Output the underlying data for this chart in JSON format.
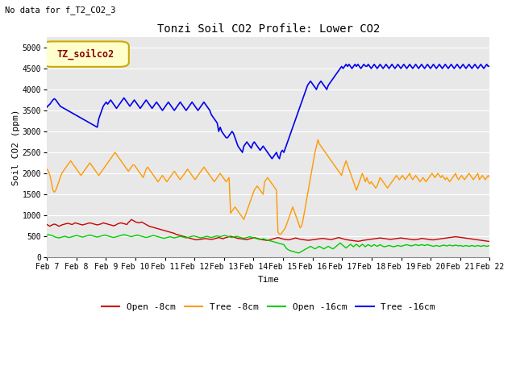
{
  "title": "Tonzi Soil CO2 Profile: Lower CO2",
  "subtitle": "No data for f_T2_CO2_3",
  "xlabel": "Time",
  "ylabel": "Soil CO2 (ppm)",
  "ylim": [
    0,
    5250
  ],
  "yticks": [
    0,
    500,
    1000,
    1500,
    2000,
    2500,
    3000,
    3500,
    4000,
    4500,
    5000
  ],
  "bg_color": "#e8e8e8",
  "legend_label": "TZ_soilco2",
  "legend_box_color": "#ffffcc",
  "legend_box_edge": "#ccaa00",
  "series_labels": [
    "Open -8cm",
    "Tree -8cm",
    "Open -16cm",
    "Tree -16cm"
  ],
  "series_colors": [
    "#cc0000",
    "#ff9900",
    "#00cc00",
    "#0000ee"
  ],
  "xticklabels": [
    "Feb 7",
    "Feb 8",
    "Feb 9",
    "Feb 10",
    "Feb 11",
    "Feb 12",
    "Feb 13",
    "Feb 14",
    "Feb 15",
    "Feb 16",
    "Feb 17",
    "Feb 18",
    "Feb 19",
    "Feb 20",
    "Feb 21",
    "Feb 22"
  ],
  "font_family": "monospace",
  "open8": [
    780,
    760,
    740,
    760,
    780,
    790,
    780,
    760,
    740,
    750,
    770,
    780,
    790,
    800,
    810,
    800,
    790,
    780,
    800,
    820,
    810,
    800,
    790,
    780,
    770,
    780,
    790,
    800,
    810,
    820,
    810,
    800,
    790,
    780,
    770,
    780,
    790,
    800,
    820,
    810,
    800,
    790,
    780,
    770,
    760,
    750,
    760,
    780,
    800,
    810,
    820,
    810,
    800,
    790,
    780,
    830,
    860,
    900,
    880,
    860,
    840,
    830,
    820,
    830,
    840,
    820,
    800,
    780,
    760,
    740,
    730,
    720,
    710,
    700,
    690,
    680,
    670,
    660,
    650,
    640,
    630,
    620,
    610,
    600,
    590,
    580,
    570,
    550,
    540,
    530,
    520,
    510,
    500,
    490,
    480,
    470,
    460,
    450,
    440,
    430,
    420,
    415,
    420,
    425,
    430,
    435,
    440,
    445,
    440,
    435,
    430,
    425,
    430,
    440,
    450,
    460,
    470,
    460,
    450,
    440,
    460,
    470,
    480,
    490,
    500,
    490,
    480,
    470,
    460,
    450,
    445,
    440,
    435,
    430,
    425,
    420,
    430,
    440,
    450,
    460,
    470,
    460,
    450,
    440,
    430,
    420,
    415,
    410,
    405,
    400,
    410,
    420,
    430,
    440,
    450,
    460,
    470,
    460,
    450,
    440,
    430,
    425,
    420,
    415,
    420,
    430,
    440,
    450,
    460,
    450,
    440,
    430,
    425,
    420,
    415,
    410,
    405,
    405,
    410,
    415,
    420,
    425,
    430,
    435,
    440,
    445,
    450,
    445,
    440,
    435,
    430,
    425,
    420,
    430,
    440,
    450,
    460,
    470,
    460,
    450,
    440,
    430,
    420,
    415,
    410,
    405,
    400,
    395,
    390,
    385,
    380,
    385,
    390,
    400,
    405,
    410,
    415,
    420,
    425,
    430,
    435,
    440,
    445,
    450,
    455,
    460,
    455,
    450,
    445,
    440,
    435,
    430,
    425,
    430,
    435,
    440,
    445,
    450,
    455,
    460,
    455,
    450,
    445,
    440,
    435,
    430,
    425,
    420,
    415,
    420,
    425,
    430,
    440,
    450,
    445,
    440,
    435,
    430,
    425,
    420,
    415,
    415,
    420,
    425,
    430,
    435,
    440,
    445,
    450,
    455,
    460,
    465,
    470,
    475,
    480,
    485,
    490,
    485,
    480,
    475,
    470,
    465,
    460,
    455,
    450,
    445,
    440,
    435,
    430,
    425,
    420,
    415,
    410,
    405,
    400,
    395,
    390,
    385,
    380,
    375,
    370,
    365,
    360,
    355,
    350,
    345,
    350,
    355,
    360,
    365,
    370,
    375,
    380,
    390,
    395,
    400,
    410,
    415,
    420,
    425,
    430,
    435,
    440,
    445,
    450,
    455,
    460,
    465,
    470,
    475,
    480,
    485,
    490,
    495,
    500,
    505,
    510,
    505,
    500,
    495
  ],
  "tree8": [
    2100,
    2050,
    1950,
    1800,
    1600,
    1550,
    1600,
    1700,
    1800,
    1900,
    2000,
    2050,
    2100,
    2150,
    2200,
    2250,
    2300,
    2250,
    2200,
    2150,
    2100,
    2050,
    2000,
    1950,
    2000,
    2050,
    2100,
    2150,
    2200,
    2250,
    2200,
    2150,
    2100,
    2050,
    2000,
    1950,
    2000,
    2050,
    2100,
    2150,
    2200,
    2250,
    2300,
    2350,
    2400,
    2450,
    2500,
    2450,
    2400,
    2350,
    2300,
    2250,
    2200,
    2150,
    2100,
    2050,
    2100,
    2150,
    2200,
    2200,
    2150,
    2100,
    2050,
    2000,
    1950,
    1900,
    2000,
    2100,
    2150,
    2100,
    2050,
    2000,
    1950,
    1900,
    1850,
    1800,
    1850,
    1900,
    1950,
    1900,
    1850,
    1800,
    1850,
    1900,
    1950,
    2000,
    2050,
    2000,
    1950,
    1900,
    1850,
    1900,
    1950,
    2000,
    2050,
    2100,
    2050,
    2000,
    1950,
    1900,
    1850,
    1900,
    1950,
    2000,
    2050,
    2100,
    2150,
    2100,
    2050,
    2000,
    1950,
    1900,
    1850,
    1800,
    1850,
    1900,
    1950,
    2000,
    1950,
    1900,
    1850,
    1800,
    1850,
    1900,
    1050,
    1100,
    1150,
    1200,
    1150,
    1100,
    1050,
    1000,
    950,
    900,
    1000,
    1100,
    1200,
    1300,
    1400,
    1500,
    1600,
    1650,
    1700,
    1650,
    1600,
    1550,
    1500,
    1800,
    1850,
    1900,
    1850,
    1800,
    1750,
    1700,
    1650,
    1600,
    600,
    550,
    550,
    600,
    650,
    700,
    800,
    900,
    1000,
    1100,
    1200,
    1100,
    1000,
    900,
    800,
    700,
    750,
    900,
    1100,
    1300,
    1500,
    1700,
    1900,
    2100,
    2300,
    2500,
    2650,
    2800,
    2700,
    2650,
    2600,
    2550,
    2500,
    2450,
    2400,
    2350,
    2300,
    2250,
    2200,
    2150,
    2100,
    2050,
    2000,
    1950,
    2100,
    2200,
    2300,
    2200,
    2100,
    2000,
    1900,
    1800,
    1700,
    1600,
    1700,
    1800,
    1900,
    2000,
    1900,
    1800,
    1900,
    1800,
    1750,
    1800,
    1750,
    1700,
    1650,
    1700,
    1800,
    1900,
    1850,
    1800,
    1750,
    1700,
    1650,
    1700,
    1750,
    1800,
    1850,
    1900,
    1950,
    1900,
    1850,
    1900,
    1950,
    1900,
    1850,
    1900,
    1950,
    2000,
    1900,
    1850,
    1900,
    1950,
    1900,
    1850,
    1800,
    1850,
    1900,
    1850,
    1800,
    1850,
    1900,
    1950,
    2000,
    1950,
    1900,
    1950,
    2000,
    1950,
    1900,
    1950,
    1900,
    1850,
    1900,
    1850,
    1800,
    1850,
    1900,
    1950,
    2000,
    1900,
    1850,
    1900,
    1950,
    1900,
    1850,
    1900,
    1950,
    2000,
    1950,
    1900,
    1850,
    1900,
    1950,
    2000,
    1850,
    1900,
    1950,
    1900,
    1850,
    1900,
    1950,
    1900,
    1850,
    1900,
    1950,
    2000,
    1950
  ],
  "open16": [
    530,
    540,
    530,
    520,
    510,
    490,
    480,
    470,
    460,
    470,
    480,
    490,
    500,
    490,
    480,
    470,
    480,
    490,
    500,
    510,
    520,
    510,
    500,
    490,
    480,
    490,
    500,
    510,
    520,
    530,
    520,
    510,
    500,
    490,
    480,
    490,
    500,
    510,
    520,
    530,
    520,
    510,
    500,
    490,
    480,
    470,
    480,
    490,
    500,
    510,
    520,
    530,
    540,
    530,
    520,
    510,
    500,
    490,
    500,
    510,
    520,
    530,
    520,
    510,
    500,
    490,
    480,
    470,
    480,
    490,
    500,
    510,
    520,
    510,
    500,
    490,
    480,
    470,
    460,
    450,
    460,
    470,
    480,
    490,
    480,
    470,
    460,
    470,
    480,
    490,
    500,
    490,
    480,
    470,
    460,
    470,
    480,
    490,
    500,
    510,
    500,
    490,
    480,
    470,
    460,
    470,
    480,
    490,
    500,
    490,
    480,
    470,
    480,
    490,
    500,
    510,
    500,
    490,
    500,
    510,
    520,
    510,
    500,
    490,
    480,
    470,
    480,
    490,
    500,
    490,
    480,
    470,
    460,
    450,
    460,
    470,
    480,
    490,
    480,
    470,
    460,
    450,
    440,
    430,
    420,
    430,
    440,
    430,
    420,
    410,
    400,
    390,
    380,
    370,
    360,
    350,
    340,
    330,
    320,
    310,
    300,
    250,
    200,
    180,
    160,
    150,
    140,
    130,
    120,
    110,
    100,
    120,
    140,
    160,
    180,
    200,
    220,
    240,
    260,
    240,
    220,
    200,
    220,
    240,
    260,
    240,
    220,
    200,
    220,
    240,
    260,
    240,
    220,
    200,
    220,
    250,
    280,
    310,
    340,
    310,
    280,
    250,
    220,
    250,
    280,
    310,
    280,
    250,
    280,
    310,
    280,
    250,
    280,
    310,
    280,
    250,
    280,
    300,
    280,
    260,
    280,
    300,
    280,
    260,
    280,
    300,
    280,
    260,
    250,
    260,
    270,
    280,
    270,
    260,
    250,
    260,
    270,
    280,
    270,
    260,
    270,
    280,
    290,
    300,
    290,
    280,
    270,
    280,
    290,
    300,
    290,
    280,
    290,
    300,
    290,
    280,
    290,
    300,
    290,
    280,
    270,
    260,
    270,
    280,
    270,
    260,
    270,
    280,
    290,
    280,
    270,
    280,
    290,
    280,
    270,
    280,
    290,
    280,
    270,
    280,
    270,
    260,
    270,
    280,
    270,
    260,
    270,
    280,
    270,
    260,
    270,
    280,
    270,
    260,
    270,
    280,
    270,
    260,
    270,
    280,
    270,
    260,
    250,
    260,
    270,
    280,
    270,
    260,
    250,
    260,
    270,
    280,
    270,
    260,
    250,
    260,
    270,
    260,
    250,
    260,
    270,
    260,
    250,
    240,
    250,
    260,
    250,
    240,
    250,
    260,
    250,
    240,
    250,
    260,
    270,
    260,
    250,
    260,
    270,
    260
  ],
  "tree16": [
    3580,
    3620,
    3650,
    3700,
    3750,
    3780,
    3750,
    3700,
    3650,
    3600,
    3580,
    3560,
    3540,
    3520,
    3500,
    3480,
    3460,
    3440,
    3420,
    3400,
    3380,
    3360,
    3340,
    3320,
    3300,
    3280,
    3260,
    3240,
    3220,
    3200,
    3180,
    3160,
    3140,
    3120,
    3100,
    3300,
    3400,
    3500,
    3600,
    3650,
    3700,
    3650,
    3700,
    3750,
    3700,
    3650,
    3600,
    3550,
    3600,
    3650,
    3700,
    3750,
    3800,
    3750,
    3700,
    3650,
    3600,
    3650,
    3700,
    3750,
    3700,
    3650,
    3600,
    3550,
    3600,
    3650,
    3700,
    3750,
    3700,
    3650,
    3600,
    3550,
    3600,
    3650,
    3700,
    3650,
    3600,
    3550,
    3500,
    3550,
    3600,
    3650,
    3700,
    3650,
    3600,
    3550,
    3500,
    3550,
    3600,
    3650,
    3700,
    3650,
    3600,
    3550,
    3500,
    3550,
    3600,
    3650,
    3700,
    3650,
    3600,
    3550,
    3500,
    3550,
    3600,
    3650,
    3700,
    3650,
    3600,
    3550,
    3500,
    3400,
    3350,
    3300,
    3250,
    3200,
    3000,
    3100,
    3000,
    2950,
    2900,
    2850,
    2850,
    2900,
    2950,
    3000,
    2950,
    2850,
    2750,
    2650,
    2600,
    2550,
    2500,
    2650,
    2700,
    2750,
    2700,
    2650,
    2600,
    2700,
    2750,
    2700,
    2650,
    2600,
    2550,
    2600,
    2650,
    2600,
    2550,
    2500,
    2450,
    2400,
    2350,
    2400,
    2450,
    2500,
    2400,
    2350,
    2500,
    2550,
    2500,
    2600,
    2700,
    2800,
    2900,
    3000,
    3100,
    3200,
    3300,
    3400,
    3500,
    3600,
    3700,
    3800,
    3900,
    4000,
    4100,
    4150,
    4200,
    4150,
    4100,
    4050,
    4000,
    4100,
    4150,
    4200,
    4150,
    4100,
    4050,
    4000,
    4100,
    4150,
    4200,
    4250,
    4300,
    4350,
    4400,
    4450,
    4500,
    4550,
    4500,
    4550,
    4600,
    4550,
    4600,
    4550,
    4500,
    4550,
    4600,
    4550,
    4600,
    4550,
    4500,
    4550,
    4600,
    4560,
    4550,
    4600,
    4550,
    4500,
    4550,
    4600,
    4550,
    4500,
    4550,
    4600,
    4550,
    4500,
    4550,
    4600,
    4550,
    4500,
    4550,
    4600,
    4550,
    4500,
    4550,
    4600,
    4550,
    4500,
    4550,
    4600,
    4550,
    4500,
    4550,
    4600,
    4550,
    4500,
    4550,
    4600,
    4550,
    4500,
    4550,
    4600,
    4550,
    4500,
    4550,
    4600,
    4550,
    4500,
    4550,
    4600,
    4550,
    4500,
    4550,
    4600,
    4550,
    4500,
    4550,
    4600,
    4550,
    4500,
    4550,
    4600,
    4550,
    4500,
    4550,
    4600,
    4550,
    4500,
    4550,
    4600,
    4550,
    4500,
    4550,
    4600,
    4550,
    4500,
    4550,
    4600,
    4550,
    4500,
    4550,
    4600,
    4550,
    4500,
    4550,
    4600,
    4550,
    4560
  ]
}
